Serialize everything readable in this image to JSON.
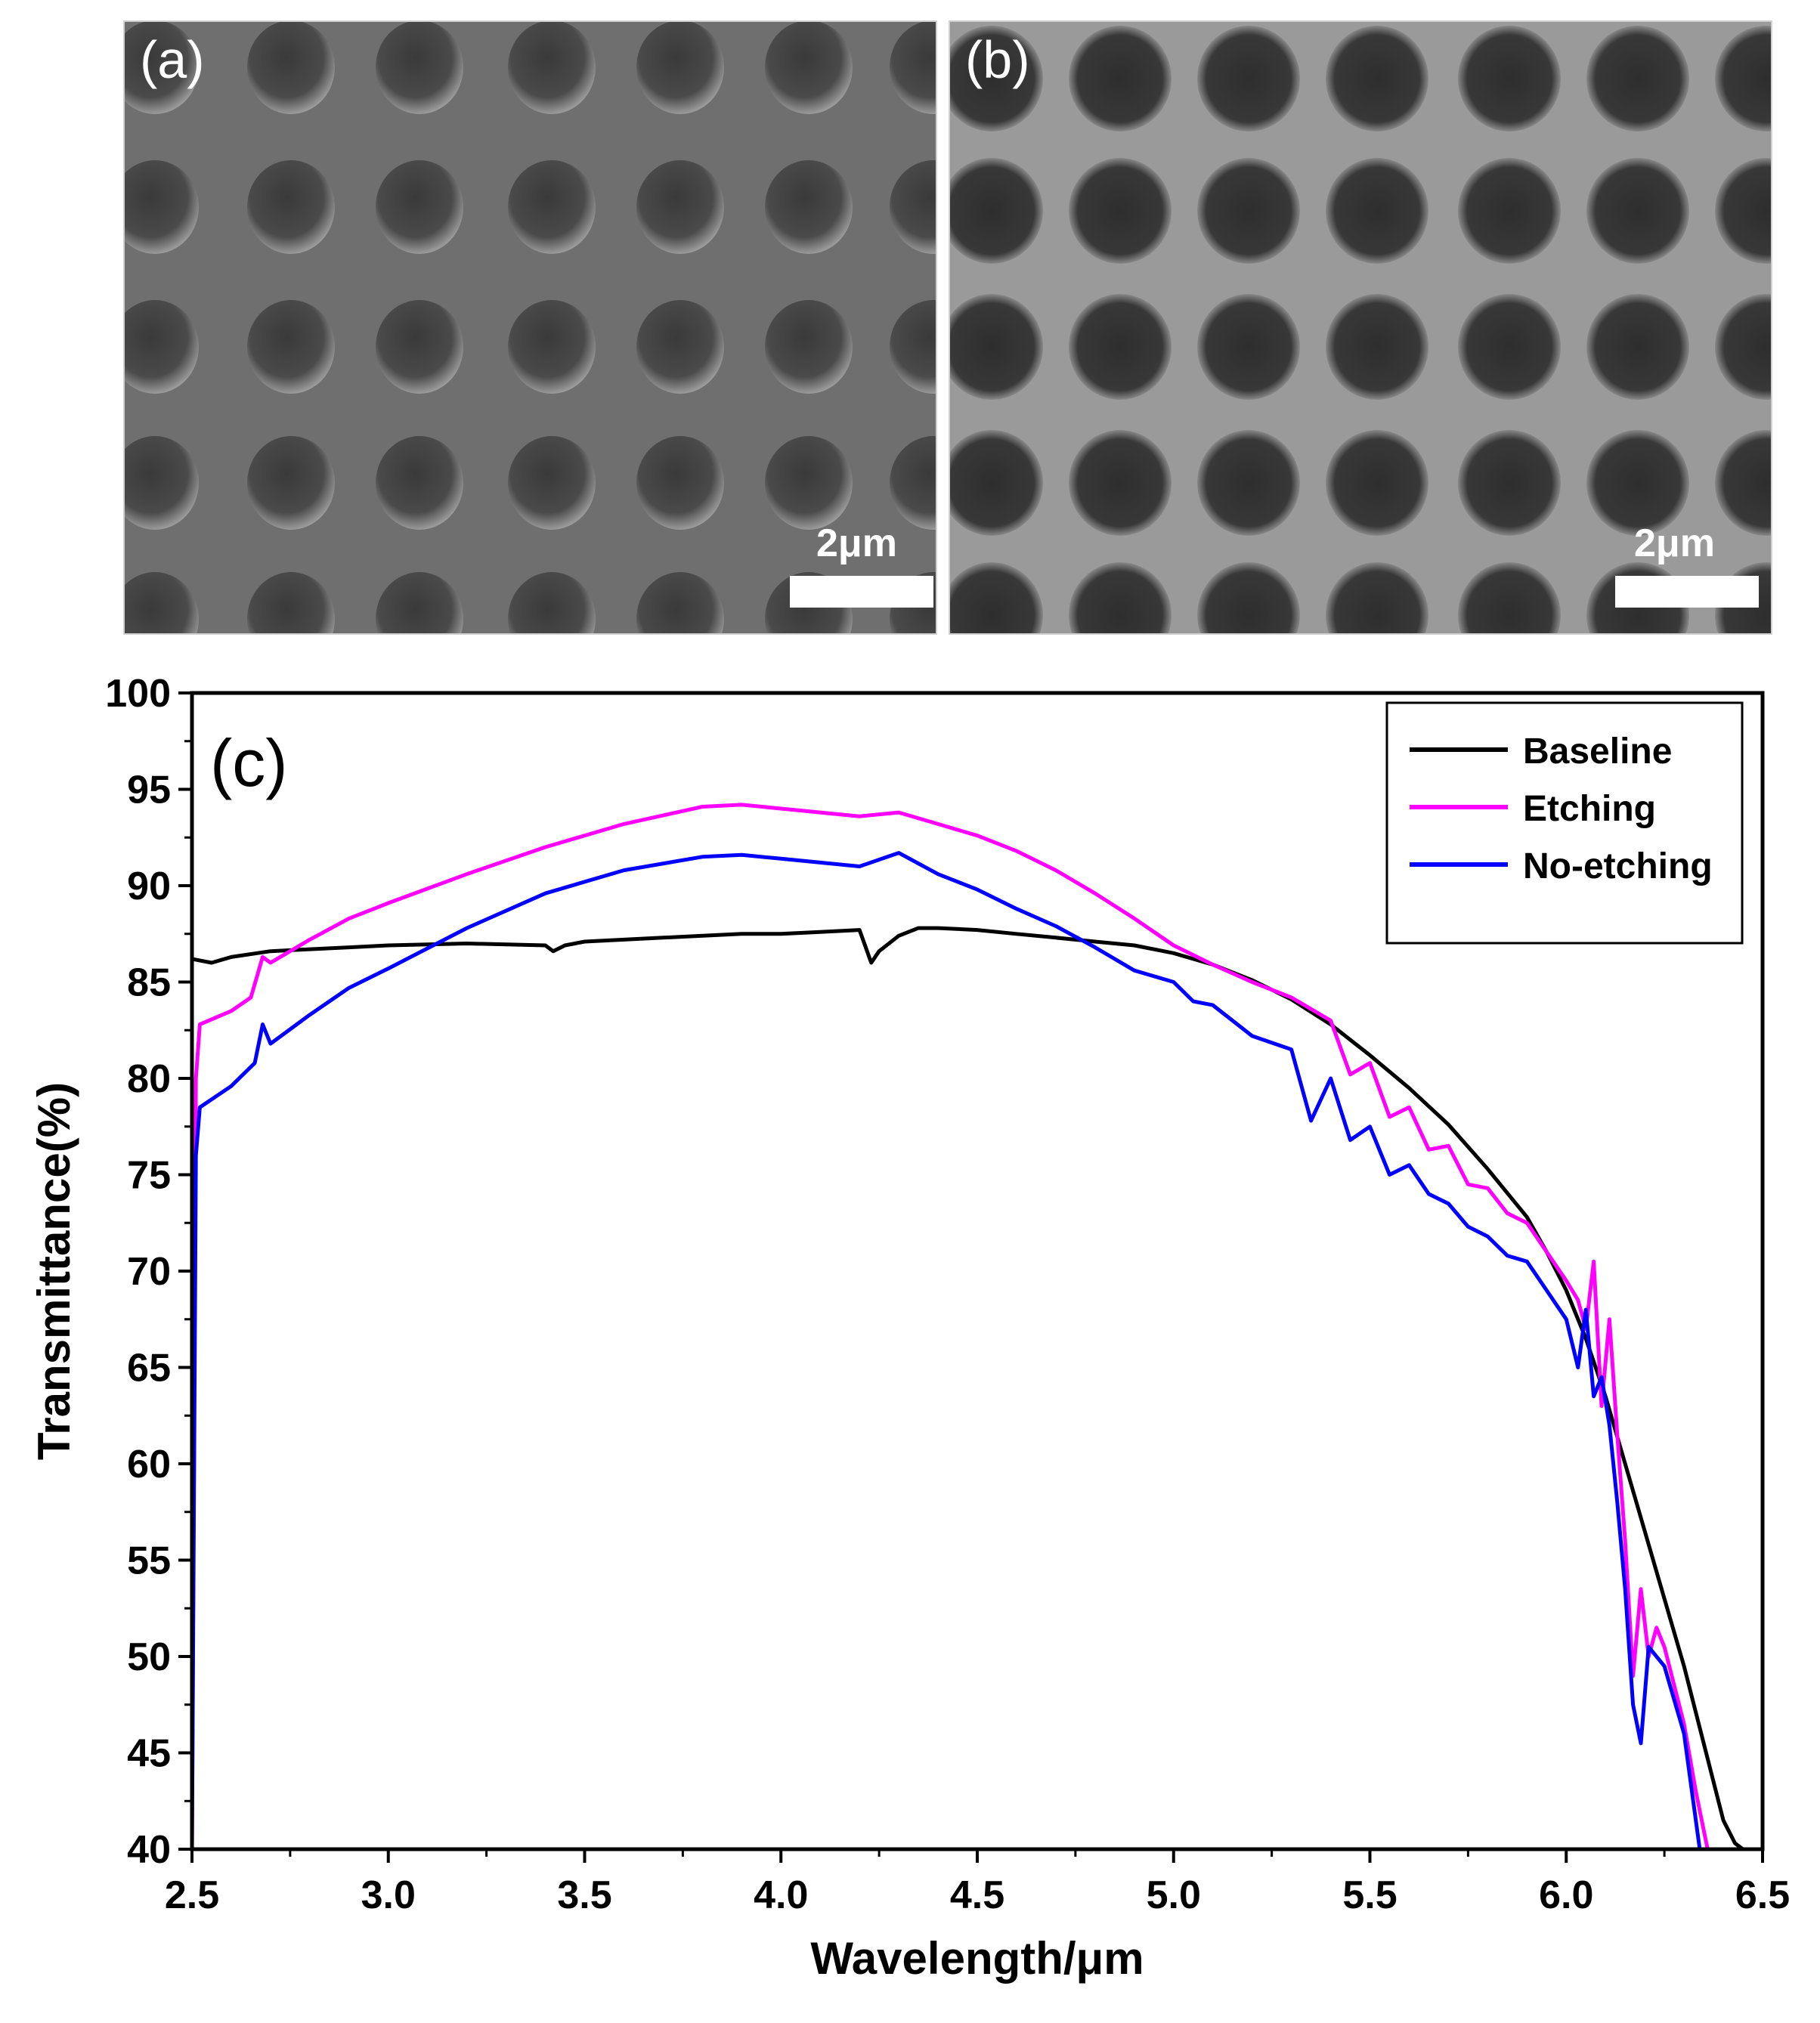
{
  "panels": {
    "a": {
      "label": "(a)",
      "scale": "2μm"
    },
    "b": {
      "label": "(b)",
      "scale": "2μm"
    }
  },
  "chart_data": {
    "type": "line",
    "panel_label": "(c)",
    "xlabel": "Wavelength/μm",
    "ylabel": "Transmittance(%)",
    "xlim": [
      2.5,
      6.5
    ],
    "ylim": [
      40,
      100
    ],
    "xticks": [
      "2.5",
      "3.0",
      "3.5",
      "4.0",
      "4.5",
      "5.0",
      "5.5",
      "6.0",
      "6.5"
    ],
    "yticks": [
      "40",
      "45",
      "50",
      "55",
      "60",
      "65",
      "70",
      "75",
      "80",
      "85",
      "90",
      "95",
      "100"
    ],
    "legend_position": "top-right",
    "series": [
      {
        "name": "Baseline",
        "color": "#000000",
        "x": [
          2.5,
          2.55,
          2.6,
          2.7,
          2.8,
          2.9,
          3.0,
          3.2,
          3.4,
          3.42,
          3.45,
          3.5,
          3.7,
          3.9,
          4.0,
          4.1,
          4.2,
          4.23,
          4.25,
          4.3,
          4.35,
          4.4,
          4.5,
          4.6,
          4.7,
          4.8,
          4.9,
          5.0,
          5.1,
          5.2,
          5.3,
          5.4,
          5.5,
          5.6,
          5.7,
          5.8,
          5.9,
          5.95,
          6.0,
          6.05,
          6.1,
          6.15,
          6.2,
          6.25,
          6.3,
          6.35,
          6.4,
          6.43,
          6.45
        ],
        "y": [
          86.2,
          86.0,
          86.3,
          86.6,
          86.7,
          86.8,
          86.9,
          87.0,
          86.9,
          86.6,
          86.9,
          87.1,
          87.3,
          87.5,
          87.5,
          87.6,
          87.7,
          86.0,
          86.6,
          87.4,
          87.8,
          87.8,
          87.7,
          87.5,
          87.3,
          87.1,
          86.9,
          86.5,
          85.9,
          85.1,
          84.1,
          82.8,
          81.2,
          79.5,
          77.6,
          75.3,
          72.8,
          71.0,
          69.0,
          66.5,
          63.5,
          60.0,
          56.5,
          53.0,
          49.5,
          45.5,
          41.5,
          40.3,
          40.0
        ]
      },
      {
        "name": "Etching",
        "color": "#ff00ff",
        "x": [
          2.5,
          2.51,
          2.52,
          2.6,
          2.65,
          2.68,
          2.7,
          2.8,
          2.9,
          3.0,
          3.2,
          3.4,
          3.6,
          3.8,
          3.9,
          4.0,
          4.1,
          4.2,
          4.3,
          4.4,
          4.5,
          4.6,
          4.7,
          4.8,
          4.9,
          5.0,
          5.1,
          5.2,
          5.3,
          5.4,
          5.45,
          5.5,
          5.55,
          5.6,
          5.65,
          5.7,
          5.75,
          5.8,
          5.85,
          5.9,
          5.95,
          6.0,
          6.03,
          6.05,
          6.07,
          6.09,
          6.11,
          6.13,
          6.15,
          6.17,
          6.19,
          6.21,
          6.23,
          6.25,
          6.3,
          6.33,
          6.36
        ],
        "y": [
          40,
          80,
          82.8,
          83.5,
          84.2,
          86.3,
          86.0,
          87.2,
          88.3,
          89.1,
          90.6,
          92.0,
          93.2,
          94.1,
          94.2,
          94.0,
          93.8,
          93.6,
          93.8,
          93.2,
          92.6,
          91.8,
          90.8,
          89.6,
          88.3,
          86.9,
          85.9,
          85.0,
          84.2,
          83.0,
          80.2,
          80.8,
          78.0,
          78.5,
          76.3,
          76.5,
          74.5,
          74.3,
          73.0,
          72.5,
          71.0,
          69.5,
          68.5,
          67.0,
          70.5,
          63.0,
          67.5,
          61.5,
          56.0,
          49.0,
          53.5,
          50.0,
          51.5,
          50.5,
          46.5,
          43.0,
          40.0
        ]
      },
      {
        "name": "No-etching",
        "color": "#0000ff",
        "x": [
          2.5,
          2.51,
          2.52,
          2.6,
          2.66,
          2.68,
          2.7,
          2.8,
          2.9,
          3.0,
          3.2,
          3.4,
          3.6,
          3.8,
          3.9,
          4.0,
          4.1,
          4.2,
          4.3,
          4.4,
          4.5,
          4.6,
          4.7,
          4.8,
          4.9,
          5.0,
          5.05,
          5.1,
          5.2,
          5.3,
          5.35,
          5.4,
          5.45,
          5.5,
          5.55,
          5.6,
          5.65,
          5.7,
          5.75,
          5.8,
          5.85,
          5.9,
          5.95,
          6.0,
          6.03,
          6.05,
          6.07,
          6.09,
          6.11,
          6.13,
          6.15,
          6.17,
          6.19,
          6.21,
          6.25,
          6.3,
          6.34
        ],
        "y": [
          40,
          76,
          78.5,
          79.6,
          80.8,
          82.8,
          81.8,
          83.3,
          84.7,
          85.7,
          87.8,
          89.6,
          90.8,
          91.5,
          91.6,
          91.4,
          91.2,
          91.0,
          91.7,
          90.6,
          89.8,
          88.8,
          87.9,
          86.8,
          85.6,
          85.0,
          84.0,
          83.8,
          82.2,
          81.5,
          77.8,
          80.0,
          76.8,
          77.5,
          75.0,
          75.5,
          74.0,
          73.5,
          72.3,
          71.8,
          70.8,
          70.5,
          69.0,
          67.5,
          65.0,
          68.0,
          63.5,
          64.5,
          62.0,
          58.0,
          53.5,
          47.5,
          45.5,
          50.5,
          49.5,
          46.0,
          40.0
        ]
      }
    ]
  }
}
